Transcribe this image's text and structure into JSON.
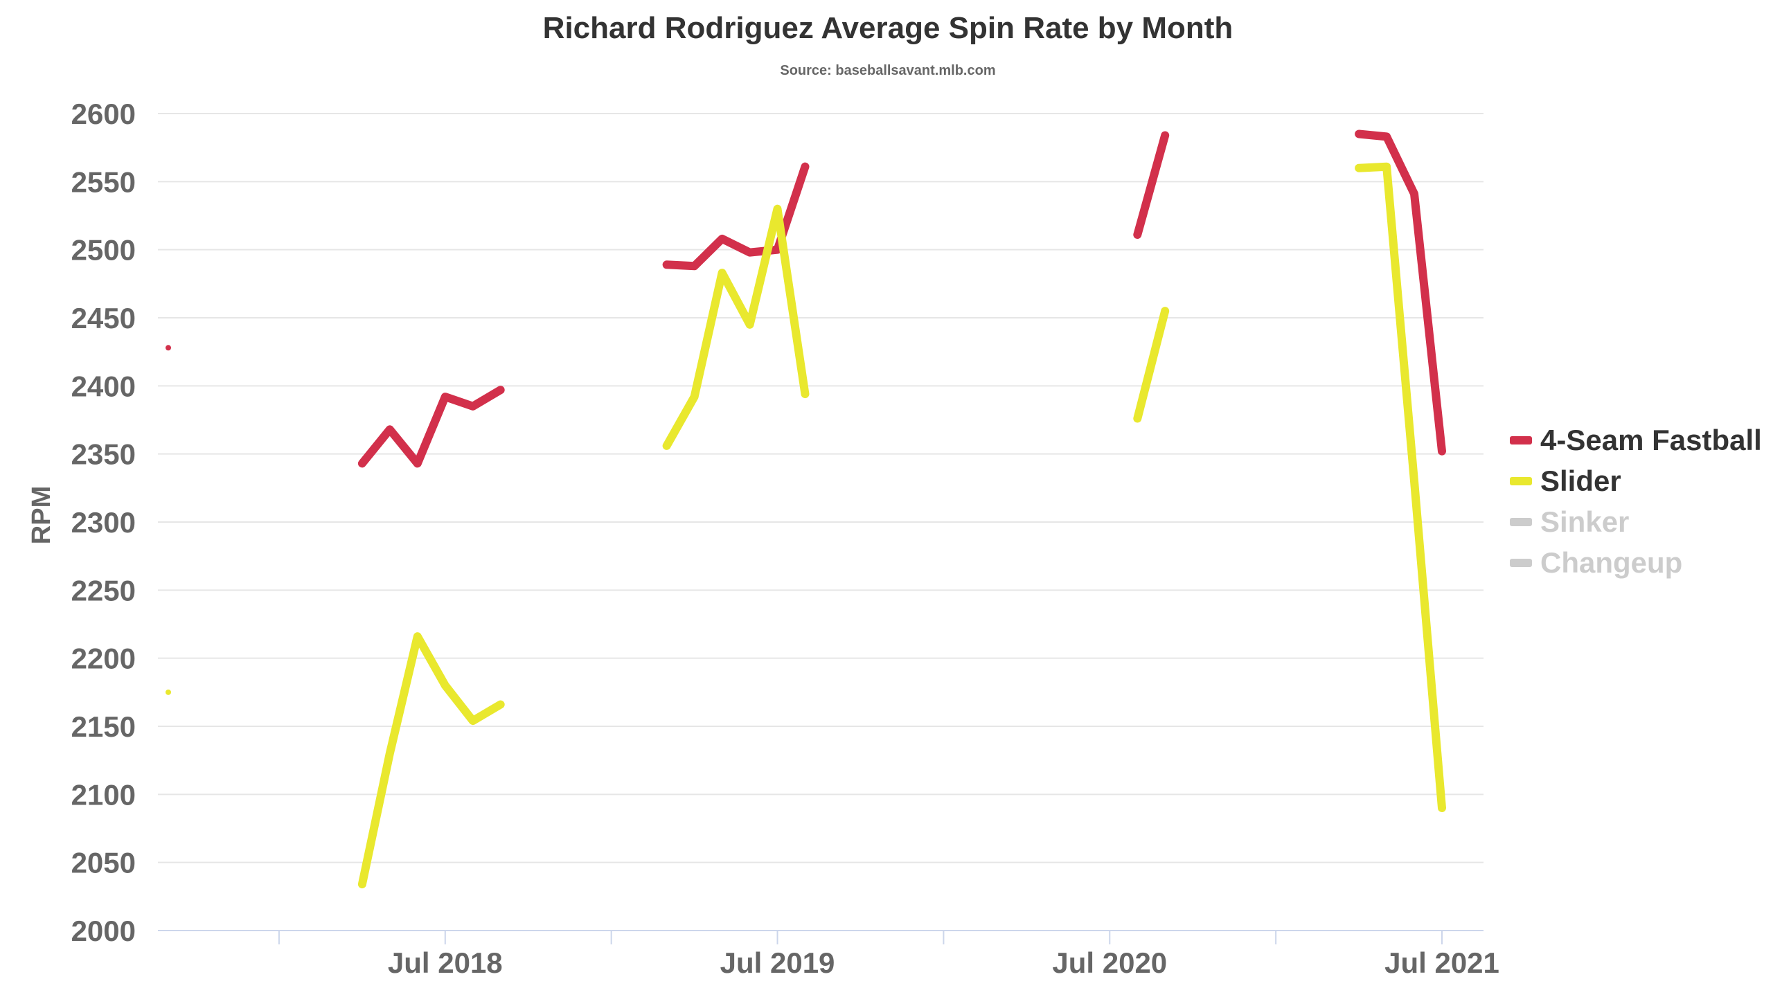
{
  "chart_data": {
    "type": "line",
    "title": "Richard Rodriguez Average Spin Rate by Month",
    "subtitle": "Source: baseballsavant.mlb.com",
    "ylabel": "RPM",
    "xlabel": "",
    "ylim": [
      2000,
      2600
    ],
    "yticks": [
      2000,
      2050,
      2100,
      2150,
      2200,
      2250,
      2300,
      2350,
      2400,
      2450,
      2500,
      2550,
      2600
    ],
    "xlim": [
      "2017-09",
      "2021-08"
    ],
    "xticks": [
      {
        "label": "Jul 2018",
        "date": "2018-07"
      },
      {
        "label": "Jul 2019",
        "date": "2019-07"
      },
      {
        "label": "Jul 2020",
        "date": "2020-07"
      },
      {
        "label": "Jul 2021",
        "date": "2021-07"
      }
    ],
    "grid": true,
    "legend_position": "right",
    "series": [
      {
        "name": "4-Seam Fastball",
        "color": "#d2304b",
        "active": true,
        "points": [
          {
            "x": "2017-09",
            "y": 2428
          },
          {
            "x": null,
            "y": null
          },
          {
            "x": "2018-04",
            "y": 2343
          },
          {
            "x": "2018-05",
            "y": 2368
          },
          {
            "x": "2018-06",
            "y": 2343
          },
          {
            "x": "2018-07",
            "y": 2392
          },
          {
            "x": "2018-08",
            "y": 2385
          },
          {
            "x": "2018-09",
            "y": 2397
          },
          {
            "x": null,
            "y": null
          },
          {
            "x": "2019-03",
            "y": 2489
          },
          {
            "x": "2019-04",
            "y": 2488
          },
          {
            "x": "2019-05",
            "y": 2508
          },
          {
            "x": "2019-06",
            "y": 2498
          },
          {
            "x": "2019-07",
            "y": 2500
          },
          {
            "x": "2019-08",
            "y": 2561
          },
          {
            "x": null,
            "y": null
          },
          {
            "x": "2020-08",
            "y": 2511
          },
          {
            "x": "2020-09",
            "y": 2584
          },
          {
            "x": null,
            "y": null
          },
          {
            "x": "2021-04",
            "y": 2585
          },
          {
            "x": "2021-05",
            "y": 2583
          },
          {
            "x": "2021-06",
            "y": 2541
          },
          {
            "x": "2021-07",
            "y": 2352
          }
        ]
      },
      {
        "name": "Slider",
        "color": "#e9e82e",
        "active": true,
        "points": [
          {
            "x": "2017-09",
            "y": 2175
          },
          {
            "x": null,
            "y": null
          },
          {
            "x": "2018-04",
            "y": 2034
          },
          {
            "x": "2018-05",
            "y": 2130
          },
          {
            "x": "2018-06",
            "y": 2216
          },
          {
            "x": "2018-07",
            "y": 2180
          },
          {
            "x": "2018-08",
            "y": 2154
          },
          {
            "x": "2018-09",
            "y": 2166
          },
          {
            "x": null,
            "y": null
          },
          {
            "x": "2019-03",
            "y": 2356
          },
          {
            "x": "2019-04",
            "y": 2392
          },
          {
            "x": "2019-05",
            "y": 2483
          },
          {
            "x": "2019-06",
            "y": 2445
          },
          {
            "x": "2019-07",
            "y": 2530
          },
          {
            "x": "2019-08",
            "y": 2394
          },
          {
            "x": null,
            "y": null
          },
          {
            "x": "2020-08",
            "y": 2376
          },
          {
            "x": "2020-09",
            "y": 2455
          },
          {
            "x": null,
            "y": null
          },
          {
            "x": "2021-04",
            "y": 2560
          },
          {
            "x": "2021-05",
            "y": 2561
          },
          {
            "x": "2021-06",
            "y": 2330
          },
          {
            "x": "2021-07",
            "y": 2090
          }
        ]
      },
      {
        "name": "Sinker",
        "color": "#cccccc",
        "active": false,
        "points": []
      },
      {
        "name": "Changeup",
        "color": "#cccccc",
        "active": false,
        "points": []
      }
    ],
    "colors": {
      "grid": "#e6e6e6",
      "axis": "#ccd6eb",
      "text_main": "#333333",
      "text_muted": "#666666",
      "legend_inactive": "#cccccc"
    }
  }
}
